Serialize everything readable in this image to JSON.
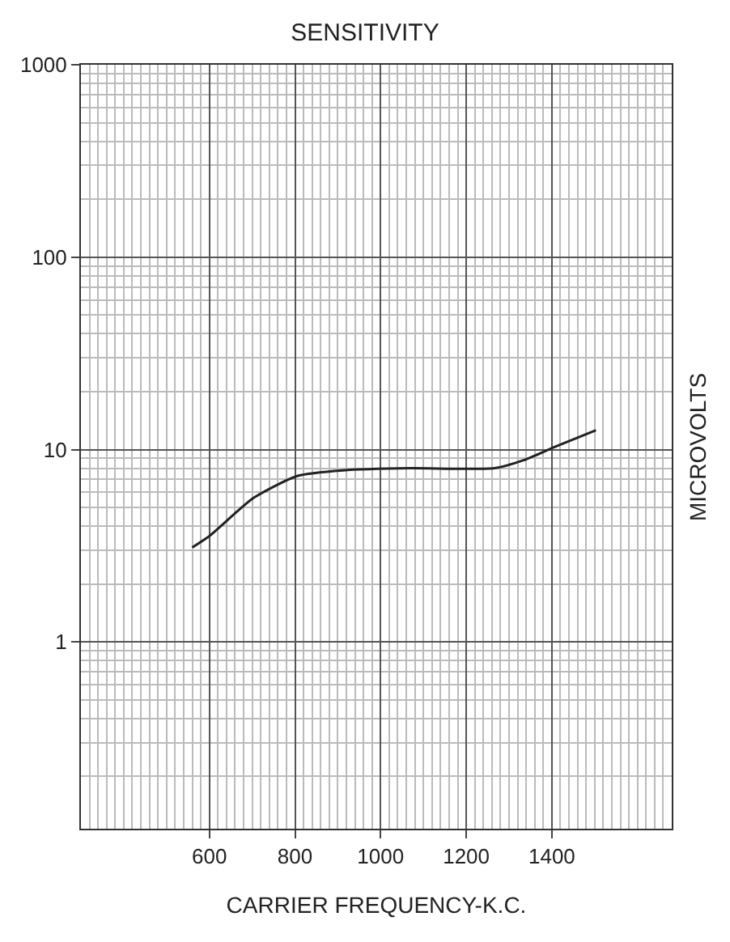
{
  "chart_data": {
    "type": "line",
    "title": "SENSITIVITY",
    "xlabel": "CARRIER FREQUENCY-K.C.",
    "ylabel": "MICROVOLTS",
    "x": [
      560,
      600,
      703,
      806,
      912,
      1069,
      1266,
      1334,
      1406,
      1503
    ],
    "series": [
      {
        "color": "#222222",
        "values": [
          3.1,
          3.55,
          5.6,
          7.3,
          7.8,
          8.0,
          8.0,
          8.8,
          10.3,
          12.6
        ]
      }
    ],
    "log": true,
    "xlim": [
      300,
      1680
    ],
    "ylim": [
      0.107,
      1000
    ],
    "xticks": [
      600,
      800,
      1000,
      1200,
      1400
    ],
    "yticks": [
      1,
      10,
      100,
      1000
    ],
    "grid": true,
    "marker": "none",
    "line_style": "solid"
  }
}
